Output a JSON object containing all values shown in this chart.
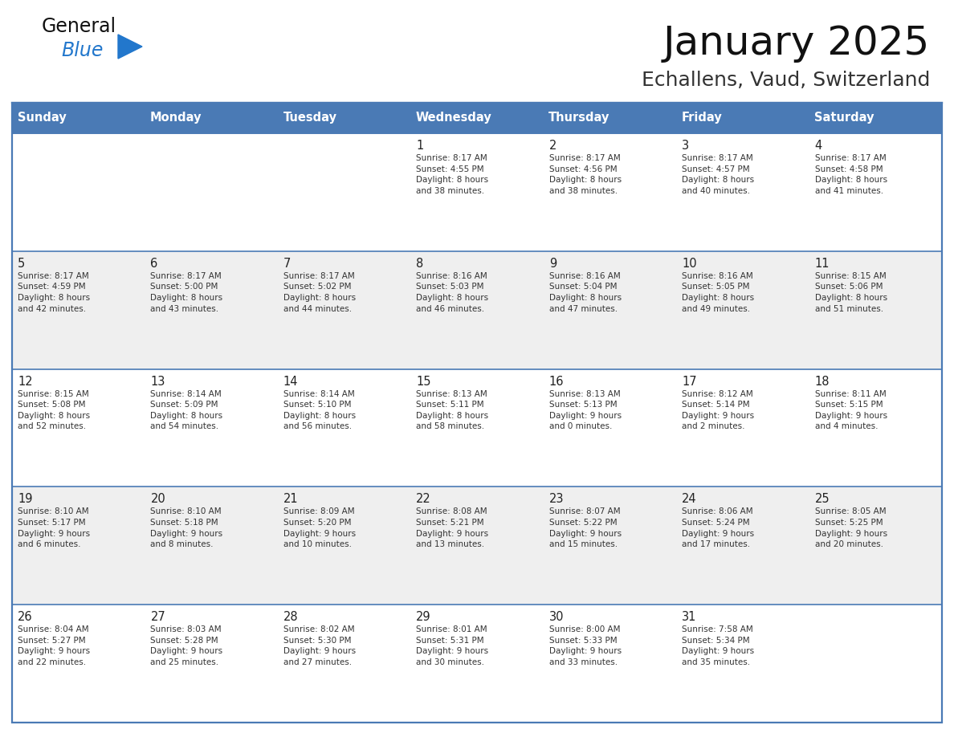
{
  "title": "January 2025",
  "subtitle": "Echallens, Vaud, Switzerland",
  "header_color": "#4a7ab5",
  "header_text_color": "#FFFFFF",
  "days_of_week": [
    "Sunday",
    "Monday",
    "Tuesday",
    "Wednesday",
    "Thursday",
    "Friday",
    "Saturday"
  ],
  "cell_bg_even": "#FFFFFF",
  "cell_bg_odd": "#EFEFEF",
  "border_color": "#4a7ab5",
  "day_num_color": "#222222",
  "text_color": "#333333",
  "title_color": "#111111",
  "subtitle_color": "#333333",
  "logo_general_color": "#111111",
  "logo_blue_color": "#2277CC",
  "logo_triangle_color": "#2277CC",
  "calendar_data": [
    [
      {
        "day": "",
        "info": ""
      },
      {
        "day": "",
        "info": ""
      },
      {
        "day": "",
        "info": ""
      },
      {
        "day": "1",
        "info": "Sunrise: 8:17 AM\nSunset: 4:55 PM\nDaylight: 8 hours\nand 38 minutes."
      },
      {
        "day": "2",
        "info": "Sunrise: 8:17 AM\nSunset: 4:56 PM\nDaylight: 8 hours\nand 38 minutes."
      },
      {
        "day": "3",
        "info": "Sunrise: 8:17 AM\nSunset: 4:57 PM\nDaylight: 8 hours\nand 40 minutes."
      },
      {
        "day": "4",
        "info": "Sunrise: 8:17 AM\nSunset: 4:58 PM\nDaylight: 8 hours\nand 41 minutes."
      }
    ],
    [
      {
        "day": "5",
        "info": "Sunrise: 8:17 AM\nSunset: 4:59 PM\nDaylight: 8 hours\nand 42 minutes."
      },
      {
        "day": "6",
        "info": "Sunrise: 8:17 AM\nSunset: 5:00 PM\nDaylight: 8 hours\nand 43 minutes."
      },
      {
        "day": "7",
        "info": "Sunrise: 8:17 AM\nSunset: 5:02 PM\nDaylight: 8 hours\nand 44 minutes."
      },
      {
        "day": "8",
        "info": "Sunrise: 8:16 AM\nSunset: 5:03 PM\nDaylight: 8 hours\nand 46 minutes."
      },
      {
        "day": "9",
        "info": "Sunrise: 8:16 AM\nSunset: 5:04 PM\nDaylight: 8 hours\nand 47 minutes."
      },
      {
        "day": "10",
        "info": "Sunrise: 8:16 AM\nSunset: 5:05 PM\nDaylight: 8 hours\nand 49 minutes."
      },
      {
        "day": "11",
        "info": "Sunrise: 8:15 AM\nSunset: 5:06 PM\nDaylight: 8 hours\nand 51 minutes."
      }
    ],
    [
      {
        "day": "12",
        "info": "Sunrise: 8:15 AM\nSunset: 5:08 PM\nDaylight: 8 hours\nand 52 minutes."
      },
      {
        "day": "13",
        "info": "Sunrise: 8:14 AM\nSunset: 5:09 PM\nDaylight: 8 hours\nand 54 minutes."
      },
      {
        "day": "14",
        "info": "Sunrise: 8:14 AM\nSunset: 5:10 PM\nDaylight: 8 hours\nand 56 minutes."
      },
      {
        "day": "15",
        "info": "Sunrise: 8:13 AM\nSunset: 5:11 PM\nDaylight: 8 hours\nand 58 minutes."
      },
      {
        "day": "16",
        "info": "Sunrise: 8:13 AM\nSunset: 5:13 PM\nDaylight: 9 hours\nand 0 minutes."
      },
      {
        "day": "17",
        "info": "Sunrise: 8:12 AM\nSunset: 5:14 PM\nDaylight: 9 hours\nand 2 minutes."
      },
      {
        "day": "18",
        "info": "Sunrise: 8:11 AM\nSunset: 5:15 PM\nDaylight: 9 hours\nand 4 minutes."
      }
    ],
    [
      {
        "day": "19",
        "info": "Sunrise: 8:10 AM\nSunset: 5:17 PM\nDaylight: 9 hours\nand 6 minutes."
      },
      {
        "day": "20",
        "info": "Sunrise: 8:10 AM\nSunset: 5:18 PM\nDaylight: 9 hours\nand 8 minutes."
      },
      {
        "day": "21",
        "info": "Sunrise: 8:09 AM\nSunset: 5:20 PM\nDaylight: 9 hours\nand 10 minutes."
      },
      {
        "day": "22",
        "info": "Sunrise: 8:08 AM\nSunset: 5:21 PM\nDaylight: 9 hours\nand 13 minutes."
      },
      {
        "day": "23",
        "info": "Sunrise: 8:07 AM\nSunset: 5:22 PM\nDaylight: 9 hours\nand 15 minutes."
      },
      {
        "day": "24",
        "info": "Sunrise: 8:06 AM\nSunset: 5:24 PM\nDaylight: 9 hours\nand 17 minutes."
      },
      {
        "day": "25",
        "info": "Sunrise: 8:05 AM\nSunset: 5:25 PM\nDaylight: 9 hours\nand 20 minutes."
      }
    ],
    [
      {
        "day": "26",
        "info": "Sunrise: 8:04 AM\nSunset: 5:27 PM\nDaylight: 9 hours\nand 22 minutes."
      },
      {
        "day": "27",
        "info": "Sunrise: 8:03 AM\nSunset: 5:28 PM\nDaylight: 9 hours\nand 25 minutes."
      },
      {
        "day": "28",
        "info": "Sunrise: 8:02 AM\nSunset: 5:30 PM\nDaylight: 9 hours\nand 27 minutes."
      },
      {
        "day": "29",
        "info": "Sunrise: 8:01 AM\nSunset: 5:31 PM\nDaylight: 9 hours\nand 30 minutes."
      },
      {
        "day": "30",
        "info": "Sunrise: 8:00 AM\nSunset: 5:33 PM\nDaylight: 9 hours\nand 33 minutes."
      },
      {
        "day": "31",
        "info": "Sunrise: 7:58 AM\nSunset: 5:34 PM\nDaylight: 9 hours\nand 35 minutes."
      },
      {
        "day": "",
        "info": ""
      }
    ]
  ]
}
